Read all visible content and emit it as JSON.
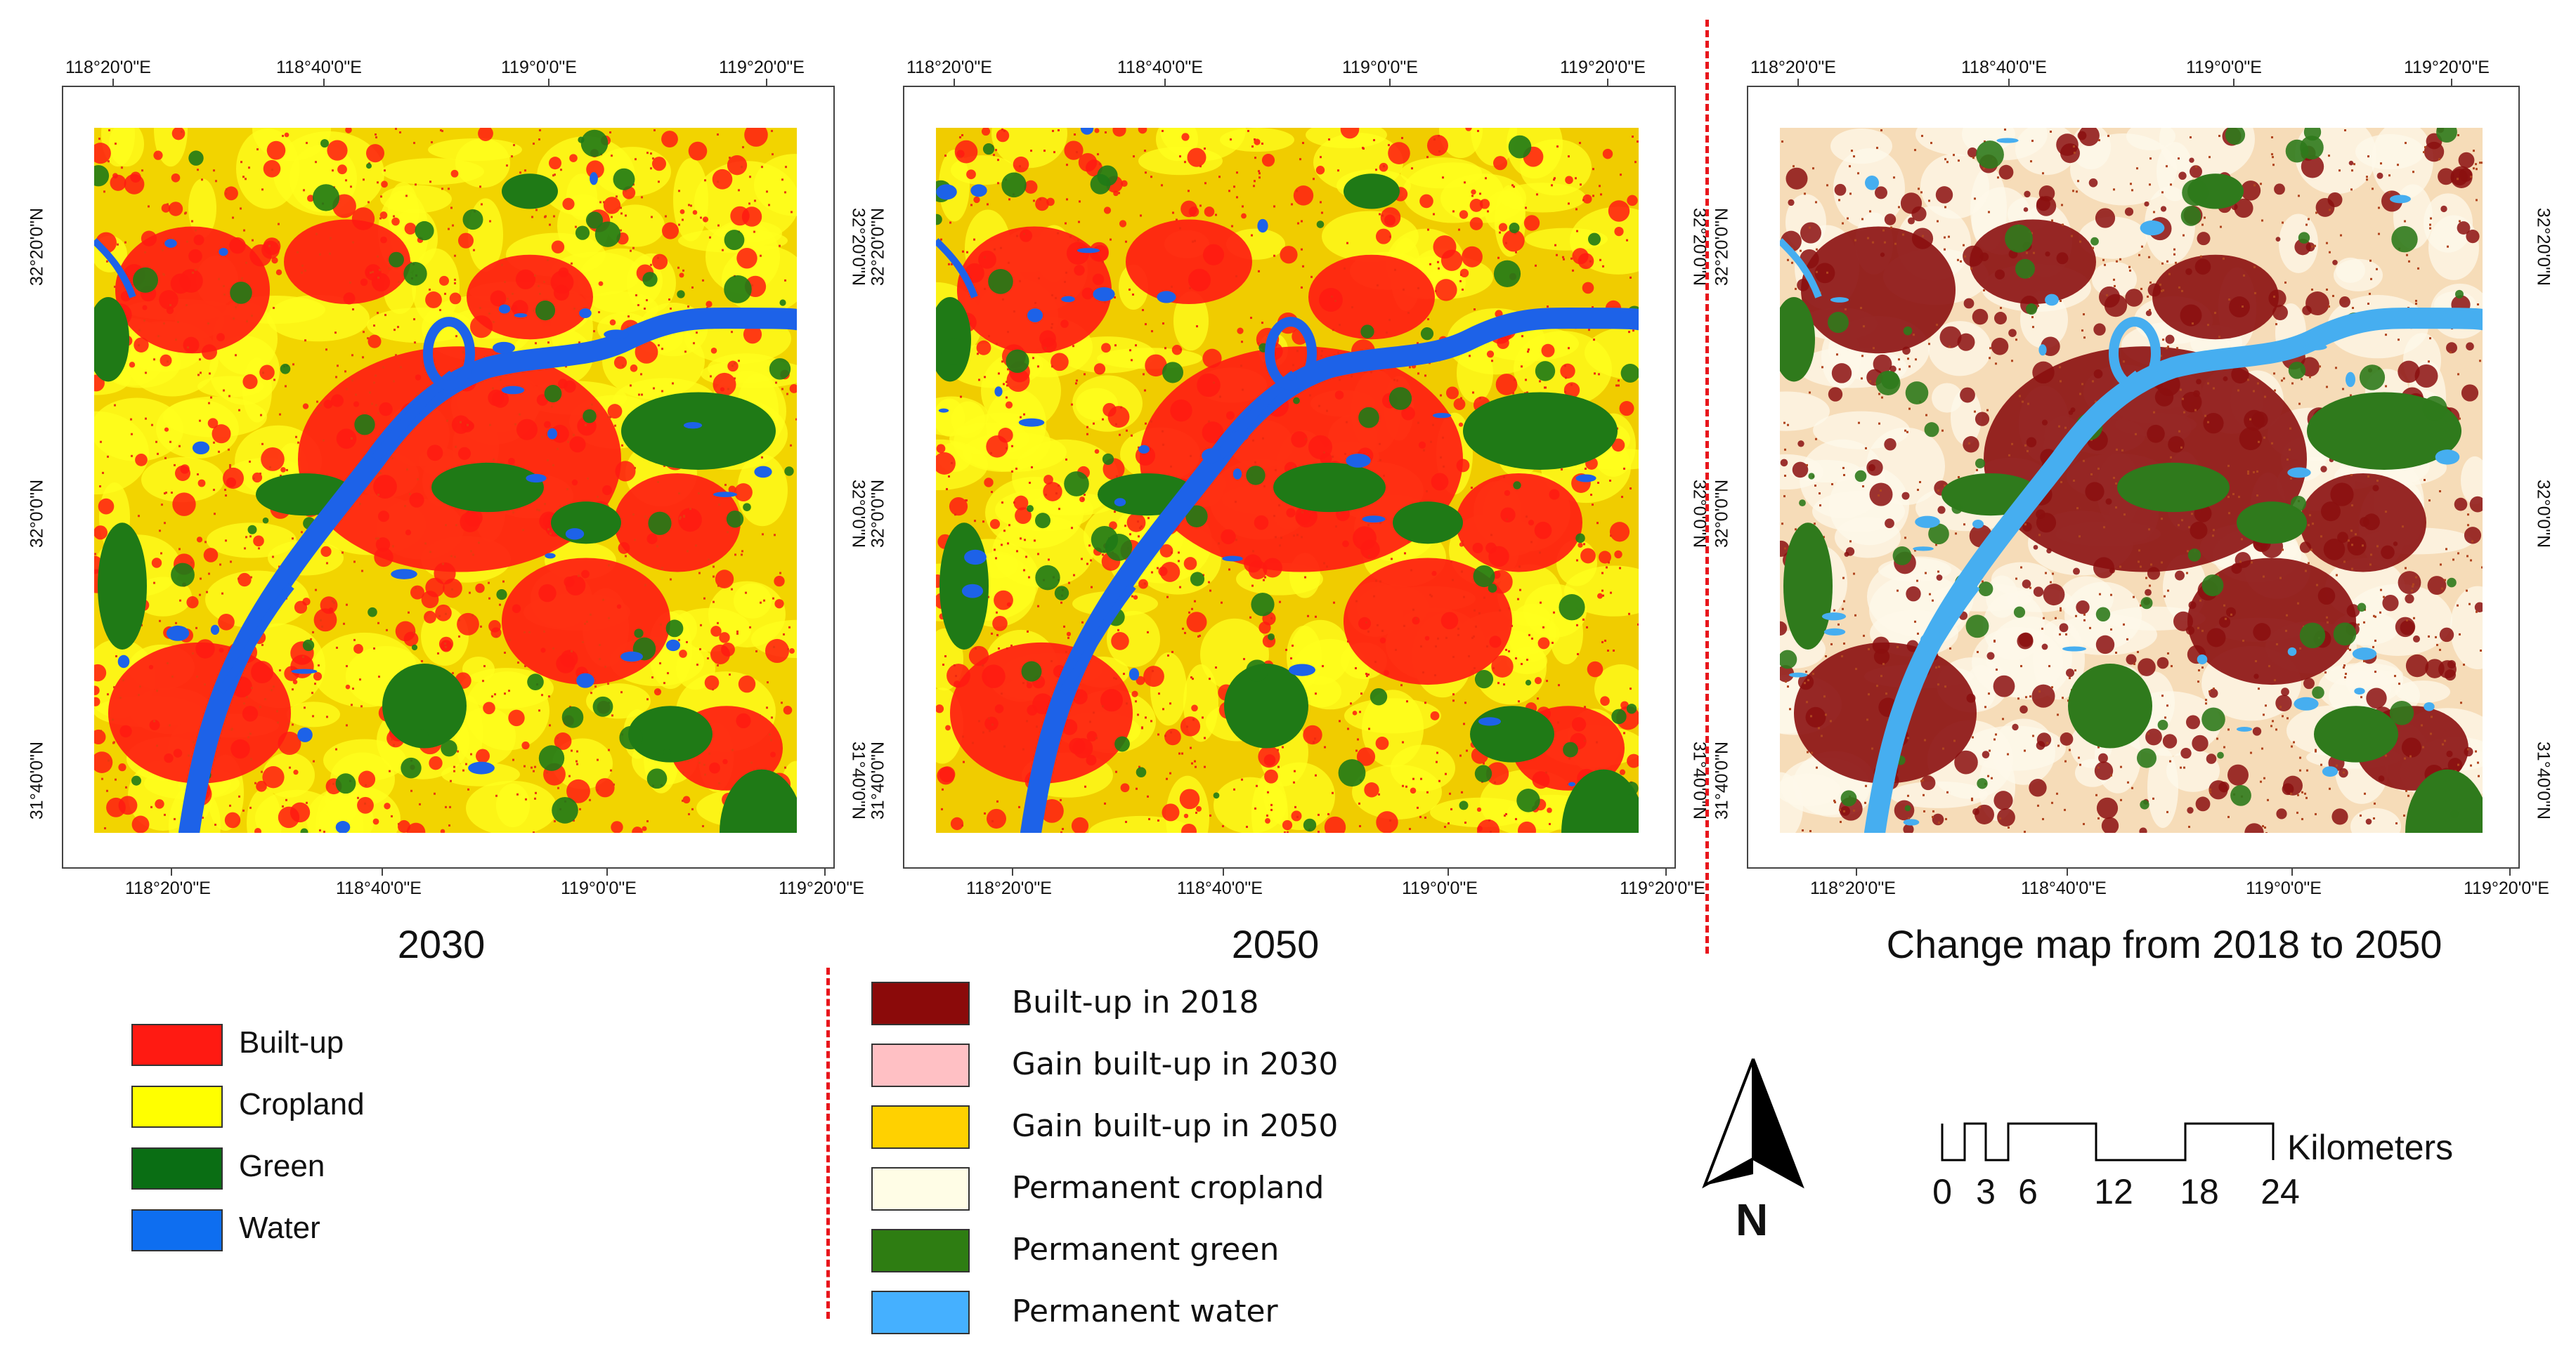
{
  "maps": [
    {
      "name": "2030",
      "caption": "2030",
      "top_coords": [
        "118°20'0\"E",
        "118°40'0\"E",
        "119°0'0\"E",
        "119°20'0\"E"
      ],
      "bottom_coords": [
        "118°20'0\"E",
        "118°40'0\"E",
        "119°0'0\"E",
        "119°20'0\"E"
      ],
      "left_coords": [
        "32°20'0\"N",
        "32°0'0\"N",
        "31°40'0\"N"
      ],
      "right_coords": [
        "32°20'0\"N",
        "32°0'0\"N",
        "31°40'0\"N"
      ],
      "colors": {
        "background": "#f2d400",
        "crop": "#ffff1e",
        "built": "#ff1a12",
        "green": "#1f7a16",
        "water": "#1d62e8",
        "speck": "#e83a10"
      }
    },
    {
      "name": "2050",
      "caption": "2050",
      "top_coords": [
        "118°20'0\"E",
        "118°40'0\"E",
        "119°0'0\"E",
        "119°20'0\"E"
      ],
      "bottom_coords": [
        "118°20'0\"E",
        "118°40'0\"E",
        "119°0'0\"E",
        "119°20'0\"E"
      ],
      "left_coords": [
        "32°20'0\"N",
        "32°0'0\"N",
        "31°40'0\"N"
      ],
      "right_coords": [
        "32°20'0\"N",
        "32°0'0\"N",
        "31°40'0\"N"
      ],
      "colors": {
        "background": "#f0cc00",
        "crop": "#ffff1e",
        "built": "#ff1a12",
        "green": "#1f7a16",
        "water": "#1d62e8",
        "speck": "#ee2a10"
      }
    },
    {
      "name": "change-2018-2050",
      "caption": "Change map from 2018 to 2050",
      "top_coords": [
        "118°20'0\"E",
        "118°40'0\"E",
        "119°0'0\"E",
        "119°20'0\"E"
      ],
      "bottom_coords": [
        "118°20'0\"E",
        "118°40'0\"E",
        "119°0'0\"E",
        "119°20'0\"E"
      ],
      "left_coords": [
        "32°20'0\"N",
        "32°0'0\"N",
        "31°40'0\"N"
      ],
      "right_coords": [
        "32°20'0\"N",
        "32°0'0\"N",
        "31°40'0\"N"
      ],
      "colors": {
        "background": "#f6dcb8",
        "crop": "#fdf8ea",
        "built": "#8b0f0f",
        "green": "#2f7a1c",
        "water": "#46aef0",
        "speck": "#b0451f"
      }
    }
  ],
  "legend_landcover": {
    "items": [
      {
        "label": "Built-up",
        "color": "#ff1a12"
      },
      {
        "label": "Cropland",
        "color": "#ffff00"
      },
      {
        "label": "Green",
        "color": "#0a6e14"
      },
      {
        "label": "Water",
        "color": "#0e6ef0"
      }
    ]
  },
  "legend_change": {
    "items": [
      {
        "label": "Built-up in 2018",
        "color": "#8b0a0a"
      },
      {
        "label": "Gain built-up in 2030",
        "color": "#ffc0c4"
      },
      {
        "label": "Gain built-up in 2050",
        "color": "#ffd100"
      },
      {
        "label": "Permanent cropland",
        "color": "#fffde6"
      },
      {
        "label": "Permanent green",
        "color": "#2e7d12"
      },
      {
        "label": "Permanent water",
        "color": "#45b0ff"
      }
    ]
  },
  "north_arrow": {
    "label": "N"
  },
  "scale_bar": {
    "unit": "Kilometers",
    "ticks": [
      "0",
      "3",
      "6",
      "12",
      "18",
      "24"
    ]
  }
}
